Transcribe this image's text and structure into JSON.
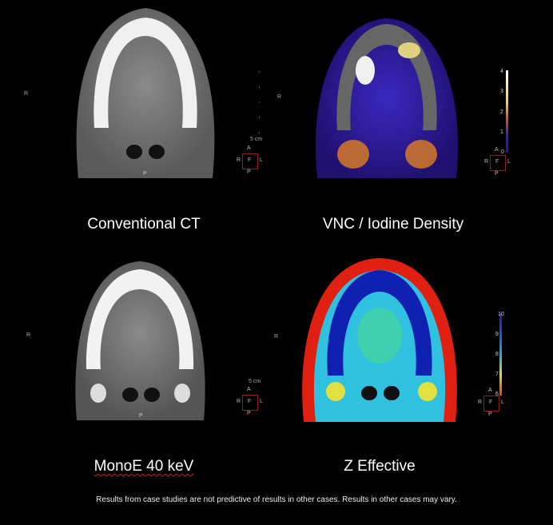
{
  "panels": [
    {
      "caption": "Conventional CT",
      "side_label": "R",
      "scale_label": "5 cm",
      "orientation": {
        "top": "A",
        "left": "R",
        "center": "F",
        "right": "L",
        "bottom": "P"
      },
      "image_bottom_label": "P"
    },
    {
      "caption": "VNC / Iodine Density",
      "side_label": "R",
      "colorbar_ticks": [
        "4",
        "3",
        "2",
        "1",
        "0"
      ],
      "colorbar_colors": [
        "#ffffff",
        "#f0d040",
        "#d05020",
        "#3020c0",
        "#2018a0"
      ],
      "orientation": {
        "top": "A",
        "left": "R",
        "center": "F",
        "right": "L",
        "bottom": "P"
      }
    },
    {
      "caption": "MonoE 40 keV",
      "side_label": "R",
      "scale_label": "5 cm",
      "orientation": {
        "top": "A",
        "left": "R",
        "center": "F",
        "right": "L",
        "bottom": "P"
      },
      "image_bottom_label": "P"
    },
    {
      "caption": "Z Effective",
      "side_label": "R",
      "colorbar_ticks": [
        "10",
        "9",
        "8",
        "7",
        "6"
      ],
      "colorbar_colors": [
        "#1020a0",
        "#2050e0",
        "#20c0d0",
        "#e0e020",
        "#e04010"
      ],
      "orientation": {
        "top": "A",
        "left": "R",
        "center": "F",
        "right": "L",
        "bottom": "P"
      }
    }
  ],
  "footnote": "Results from case studies are not predictive of results in other cases.  Results in other cases may vary."
}
